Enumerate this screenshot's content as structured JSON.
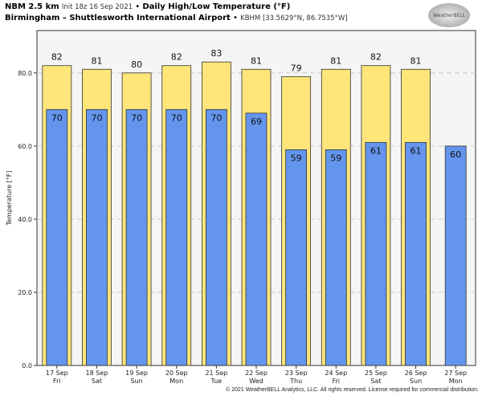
{
  "header": {
    "model": "NBM 2.5 km",
    "init": "Init 18z 16 Sep 2021",
    "sep": "•",
    "title": "Daily High/Low Temperature (°F)",
    "station": "Birmingham – Shuttlesworth International Airport",
    "station_id": "KBHM [33.5629°N, 86.7535°W]"
  },
  "logo": "WeatherBELL",
  "footer": "© 2021 WeatherBELL Analytics, LLC. All rights reserved. License required for commercial distribution.",
  "chart_data": {
    "type": "bar",
    "title": "Daily High/Low Temperature (°F)",
    "ylabel": "Temperature [°F]",
    "xlabel": "",
    "ylim": [
      0,
      91.6
    ],
    "yticks": [
      0,
      20,
      40,
      60,
      80
    ],
    "ytick_labels": [
      "0.0",
      "20.0",
      "40.0",
      "60.0",
      "80.0"
    ],
    "grid": true,
    "categories": [
      [
        "17 Sep",
        "Fri"
      ],
      [
        "18 Sep",
        "Sat"
      ],
      [
        "19 Sep",
        "Sun"
      ],
      [
        "20 Sep",
        "Mon"
      ],
      [
        "21 Sep",
        "Tue"
      ],
      [
        "22 Sep",
        "Wed"
      ],
      [
        "23 Sep",
        "Thu"
      ],
      [
        "24 Sep",
        "Fri"
      ],
      [
        "25 Sep",
        "Sat"
      ],
      [
        "26 Sep",
        "Sun"
      ],
      [
        "27 Sep",
        "Mon"
      ]
    ],
    "series": [
      {
        "name": "High",
        "color": "#ffe57a",
        "values": [
          82,
          81,
          80,
          82,
          83,
          81,
          79,
          81,
          82,
          81,
          null
        ]
      },
      {
        "name": "Low",
        "color": "#6495ed",
        "values": [
          70,
          70,
          70,
          70,
          70,
          69,
          59,
          59,
          61,
          61,
          60
        ]
      }
    ]
  }
}
